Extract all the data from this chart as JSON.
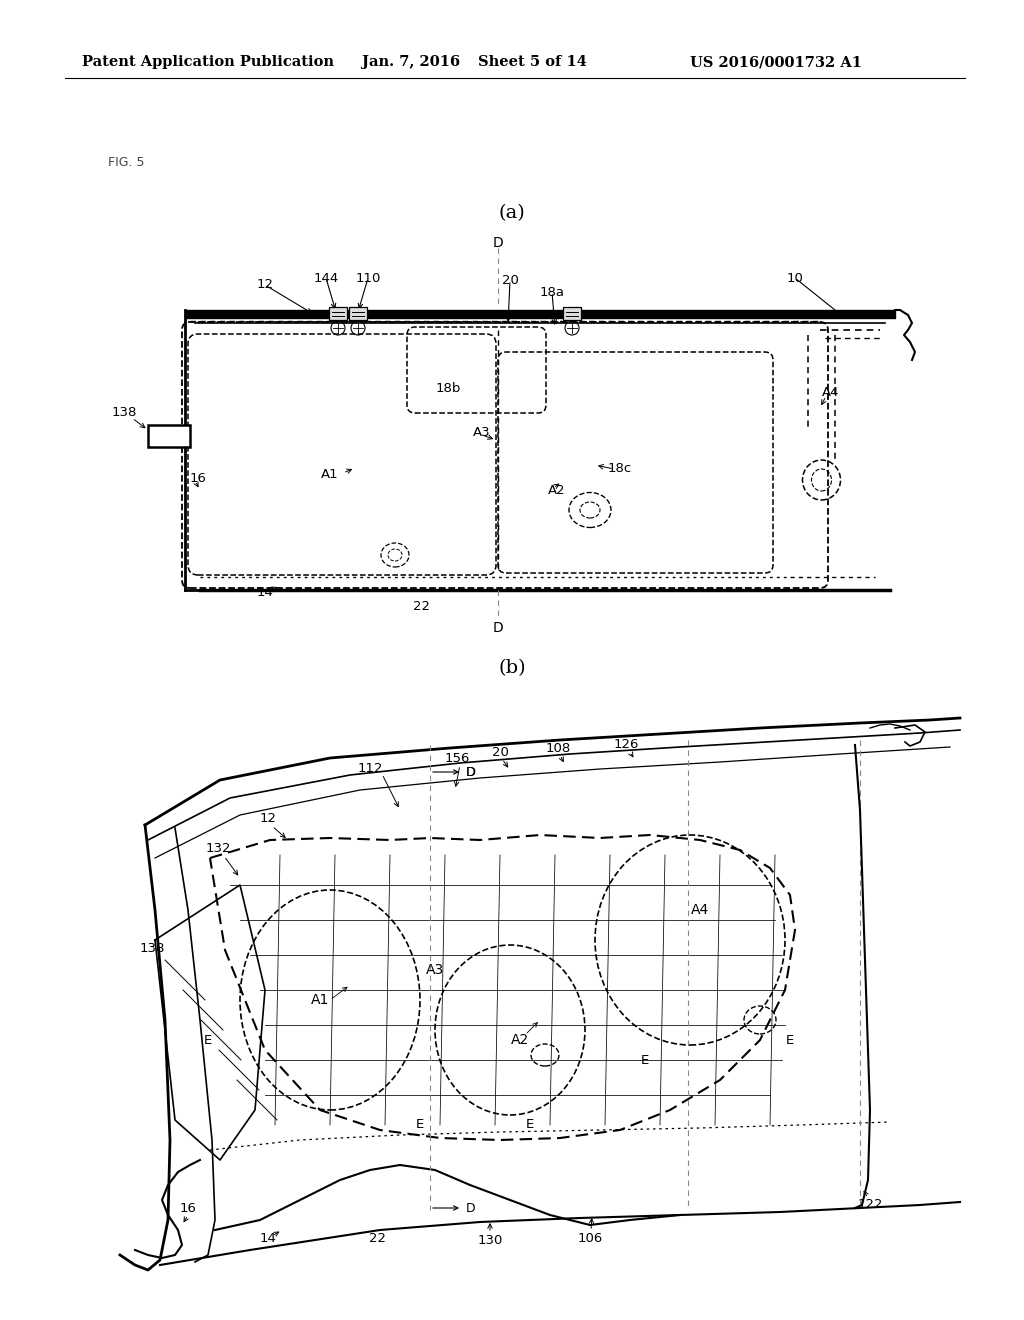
{
  "background_color": "#ffffff",
  "header_text": "Patent Application Publication",
  "header_date": "Jan. 7, 2016",
  "header_sheet": "Sheet 5 of 14",
  "header_patent": "US 2016/0001732 A1",
  "fig_label": "FIG. 5",
  "subfig_a_label": "(a)",
  "subfig_b_label": "(b)"
}
